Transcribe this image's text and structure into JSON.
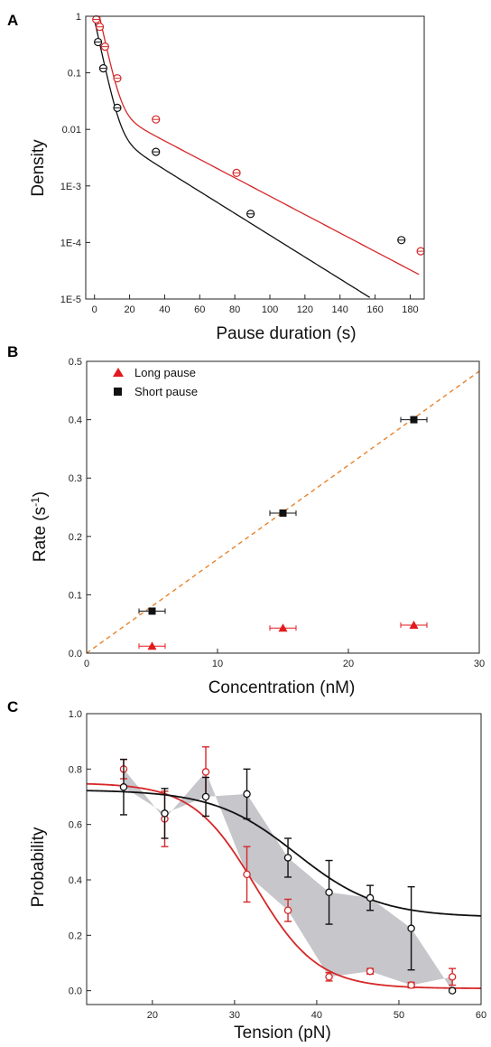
{
  "chart_data": [
    {
      "panel": "A",
      "type": "scatter",
      "xlabel": "Pause duration (s)",
      "ylabel": "Density",
      "xlim": [
        -5,
        188
      ],
      "ylim": [
        1e-05,
        1
      ],
      "yscale": "log",
      "xticks": [
        0,
        20,
        40,
        60,
        80,
        100,
        120,
        140,
        160,
        180
      ],
      "yticks": [
        1,
        0.1,
        0.01,
        0.001,
        0.0001,
        1e-05
      ],
      "ytick_labels": [
        "1",
        "0.1",
        "0.01",
        "1E-3",
        "1E-4",
        "1E-5"
      ],
      "grid": false,
      "colors": {
        "red": "#d62728",
        "black": "#111111"
      },
      "series": [
        {
          "color": "red",
          "x": [
            1,
            3,
            6,
            13,
            35,
            81,
            186
          ],
          "y": [
            0.88,
            0.65,
            0.29,
            0.08,
            0.015,
            0.0017,
            7e-05
          ]
        },
        {
          "color": "black",
          "x": [
            2,
            5,
            13,
            35,
            89,
            175
          ],
          "y": [
            0.35,
            0.12,
            0.024,
            0.004,
            0.00032,
            0.00011
          ]
        }
      ],
      "fits": [
        {
          "color": "red",
          "model": "double-exponential",
          "a1": 2.5,
          "k1": 0.33,
          "a2": 0.028,
          "k2": 0.0375,
          "x": [
            0,
            185
          ]
        },
        {
          "color": "black",
          "model": "double-exponential",
          "a1": 0.85,
          "k1": 0.33,
          "a2": 0.0115,
          "k2": 0.0445,
          "x": [
            0,
            157
          ]
        }
      ]
    },
    {
      "panel": "B",
      "type": "scatter",
      "xlabel": "Concentration (nM)",
      "ylabel": "Rate (s",
      "ylabel_sup": "-1",
      "ylabel_tail": ")",
      "xlim": [
        0,
        30
      ],
      "ylim": [
        0,
        0.5
      ],
      "xticks": [
        0,
        10,
        20,
        30
      ],
      "yticks": [
        0.0,
        0.1,
        0.2,
        0.3,
        0.4,
        0.5
      ],
      "ytick_labels": [
        "0.0",
        "0.1",
        "0.2",
        "0.3",
        "0.4",
        "0.5"
      ],
      "grid": false,
      "legend": "top-left",
      "series": [
        {
          "name": "Long pause",
          "marker": "triangle",
          "color": "#e31a1c",
          "x": [
            5,
            15,
            25
          ],
          "y": [
            0.012,
            0.043,
            0.048
          ],
          "xerr": [
            1,
            1,
            1
          ]
        },
        {
          "name": "Short pause",
          "marker": "square",
          "color": "#111111",
          "x": [
            5,
            15,
            25
          ],
          "y": [
            0.072,
            0.24,
            0.4
          ],
          "xerr": [
            1,
            1,
            1
          ]
        }
      ],
      "fit_line": {
        "style": "dashed",
        "color": "#e8822a",
        "slope": 0.0161,
        "intercept": 0,
        "x": [
          0,
          30
        ]
      }
    },
    {
      "panel": "C",
      "type": "line",
      "xlabel": "Tension (pN)",
      "ylabel": "Probability",
      "xlim": [
        12,
        60
      ],
      "ylim": [
        -0.05,
        1.0
      ],
      "xticks": [
        20,
        30,
        40,
        50,
        60
      ],
      "yticks": [
        0.0,
        0.2,
        0.4,
        0.6,
        0.8,
        1.0
      ],
      "ytick_labels": [
        "0.0",
        "0.2",
        "0.4",
        "0.6",
        "0.8",
        "1.0"
      ],
      "grid": false,
      "colors": {
        "red": "#d62728",
        "black": "#111111",
        "band": "#c6c6cb"
      },
      "series": [
        {
          "color": "red",
          "x": [
            16.5,
            21.5,
            26.5,
            31.5,
            36.5,
            41.5,
            46.5,
            51.5,
            56.5
          ],
          "y": [
            0.8,
            0.62,
            0.79,
            0.42,
            0.29,
            0.05,
            0.07,
            0.02,
            0.05
          ],
          "yerr": [
            0.035,
            0.1,
            0.09,
            0.1,
            0.04,
            0.015,
            0.01,
            0.01,
            0.03
          ]
        },
        {
          "color": "black",
          "x": [
            16.5,
            21.5,
            26.5,
            31.5,
            36.5,
            41.5,
            46.5,
            51.5,
            56.5
          ],
          "y": [
            0.735,
            0.64,
            0.7,
            0.71,
            0.48,
            0.355,
            0.335,
            0.225,
            0.0
          ],
          "yerr": [
            0.1,
            0.09,
            0.07,
            0.09,
            0.07,
            0.115,
            0.045,
            0.15,
            0.0
          ]
        }
      ],
      "fits": [
        {
          "color": "red",
          "model": "sigmoid",
          "base": 0.008,
          "amp": 0.742,
          "center": 32.5,
          "width": 3.8,
          "x": [
            12,
            60
          ]
        },
        {
          "color": "black",
          "model": "sigmoid",
          "base": 0.265,
          "amp": 0.46,
          "center": 37.5,
          "width": 5.0,
          "x": [
            12,
            60
          ]
        }
      ]
    }
  ]
}
